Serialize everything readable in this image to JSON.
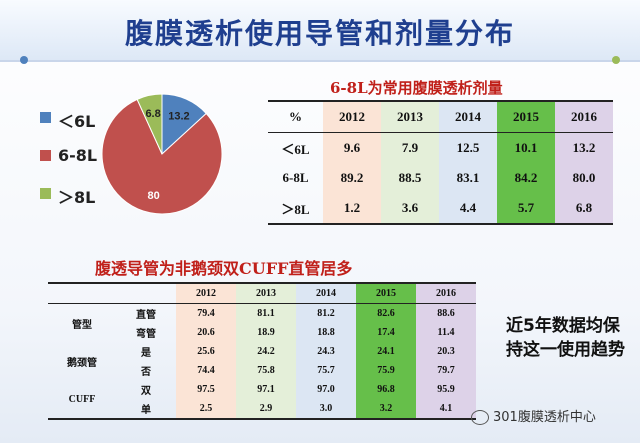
{
  "slide": {
    "title": "腹膜透析使用导管和剂量分布",
    "note": "近5年数据均保持这一使用趋势",
    "watermark": "301腹膜透析中心"
  },
  "colors": {
    "blue": "#4f81bd",
    "red": "#c0504d",
    "green": "#9bbb59",
    "title": "#1f3f8f",
    "subtitle": "#c0201a"
  },
  "chart_data": [
    {
      "type": "pie",
      "title": "",
      "legend_position": "left",
      "series": [
        {
          "name": "<6L",
          "value": 13.2,
          "label": "13.2",
          "color": "#4f81bd"
        },
        {
          "name": "6-8L",
          "value": 80,
          "label": "80",
          "color": "#c0504d"
        },
        {
          "name": ">8L",
          "value": 6.8,
          "label": "6.8",
          "color": "#9bbb59"
        }
      ],
      "legend": [
        "＜6L",
        "6-8L",
        "＞8L"
      ]
    },
    {
      "type": "table",
      "title": "6-8L为常用腹膜透析剂量",
      "header": [
        "%",
        "2012",
        "2013",
        "2014",
        "2015",
        "2016"
      ],
      "rows": [
        {
          "label": "＜6L",
          "values": [
            "9.6",
            "7.9",
            "12.5",
            "10.1",
            "13.2"
          ]
        },
        {
          "label": "6-8L",
          "values": [
            "89.2",
            "88.5",
            "83.1",
            "84.2",
            "80.0"
          ]
        },
        {
          "label": "＞8L",
          "values": [
            "1.2",
            "3.6",
            "4.4",
            "5.7",
            "6.8"
          ]
        }
      ]
    },
    {
      "type": "table",
      "title": "腹透导管为非鹅颈双CUFF直管居多",
      "header": [
        "",
        "",
        "2012",
        "2013",
        "2014",
        "2015",
        "2016"
      ],
      "groups": [
        {
          "label": "管型",
          "rows": [
            {
              "label": "直管",
              "values": [
                "79.4",
                "81.1",
                "81.2",
                "82.6",
                "88.6"
              ]
            },
            {
              "label": "弯管",
              "values": [
                "20.6",
                "18.9",
                "18.8",
                "17.4",
                "11.4"
              ]
            }
          ]
        },
        {
          "label": "鹅颈管",
          "rows": [
            {
              "label": "是",
              "values": [
                "25.6",
                "24.2",
                "24.3",
                "24.1",
                "20.3"
              ]
            },
            {
              "label": "否",
              "values": [
                "74.4",
                "75.8",
                "75.7",
                "75.9",
                "79.7"
              ]
            }
          ]
        },
        {
          "label": "CUFF",
          "rows": [
            {
              "label": "双",
              "values": [
                "97.5",
                "97.1",
                "97.0",
                "96.8",
                "95.9"
              ]
            },
            {
              "label": "单",
              "values": [
                "2.5",
                "2.9",
                "3.0",
                "3.2",
                "4.1"
              ]
            }
          ]
        }
      ]
    }
  ]
}
